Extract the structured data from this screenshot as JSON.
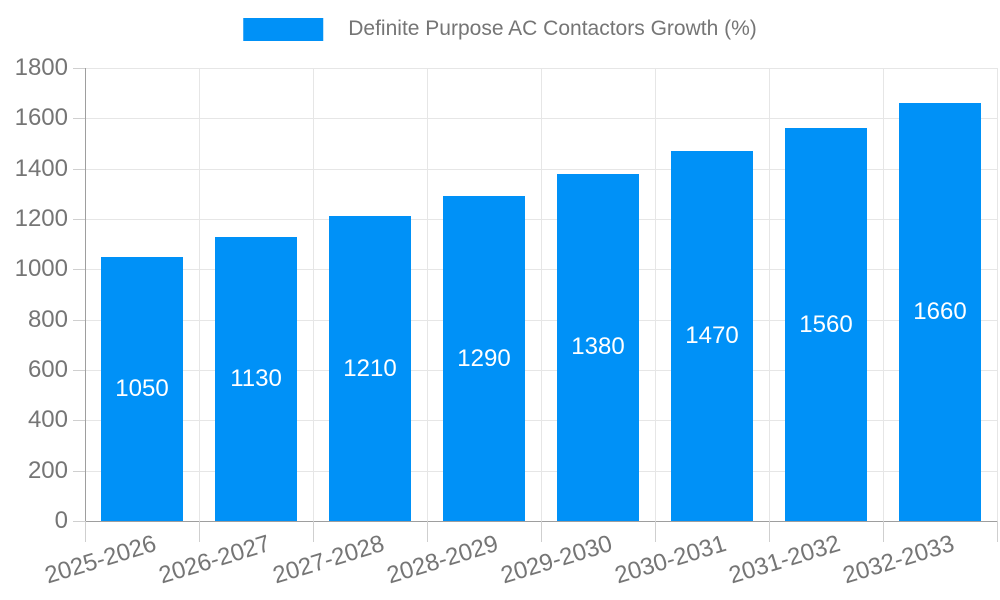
{
  "legend": {
    "label": "Definite Purpose AC Contactors Growth (%)"
  },
  "chart_data": {
    "type": "bar",
    "title": "Definite Purpose AC Contactors Growth (%)",
    "categories": [
      "2025-2026",
      "2026-2027",
      "2027-2028",
      "2028-2029",
      "2029-2030",
      "2030-2031",
      "2031-2032",
      "2032-2033"
    ],
    "values": [
      1050,
      1130,
      1210,
      1290,
      1380,
      1470,
      1560,
      1660
    ],
    "xlabel": "",
    "ylabel": "",
    "ylim": [
      0,
      1800
    ],
    "yticks": [
      0,
      200,
      400,
      600,
      800,
      1000,
      1200,
      1400,
      1600,
      1800
    ],
    "grid": true,
    "legend_position": "top-center",
    "x_label_rotation_deg": -17,
    "colors": {
      "bar": "#0091f7",
      "value_label": "#ffffff",
      "axis_text": "#757575",
      "grid": "#e6e6e6",
      "axis_line": "#9e9e9e",
      "tick": "#cfcfcf",
      "background": "#ffffff"
    }
  }
}
